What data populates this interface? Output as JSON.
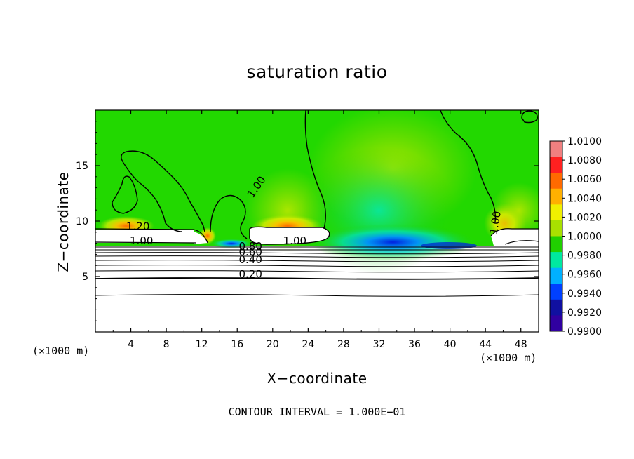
{
  "chart_data": {
    "type": "heatmap",
    "title": "saturation ratio",
    "xlabel": "X−coordinate",
    "ylabel": "Z−coordinate",
    "x_unit_label_left": "(×1000 m)",
    "x_unit_label_right": "(×1000 m)",
    "footer": "CONTOUR INTERVAL = 1.000E−01",
    "xlim": [
      0,
      50
    ],
    "ylim": [
      0,
      20
    ],
    "x_ticks": [
      "4",
      "8",
      "12",
      "16",
      "20",
      "24",
      "28",
      "32",
      "36",
      "40",
      "44",
      "48"
    ],
    "y_ticks": [
      "5",
      "10",
      "15"
    ],
    "colorbar": {
      "range": [
        0.99,
        1.01
      ],
      "labels": [
        "1.0100",
        "1.0080",
        "1.0060",
        "1.0040",
        "1.0020",
        "1.0000",
        "0.9980",
        "0.9960",
        "0.9940",
        "0.9920",
        "0.9900"
      ],
      "colors": [
        "#f08080",
        "#ff2020",
        "#ff6a00",
        "#ffb000",
        "#f0f000",
        "#a8e000",
        "#20d000",
        "#00e8a0",
        "#00b0ff",
        "#0040ff",
        "#1010a0",
        "#3000a0"
      ]
    },
    "contour_labels": [
      "1.00",
      "1.20",
      "1.00",
      "1.00",
      "0.80",
      "0.60",
      "0.40",
      "0.20",
      "1.00"
    ],
    "contour_interval": 0.1,
    "colors": {
      "background_field": "#22d800",
      "moist_band": "#ffb000",
      "dry_band": "#0020e0",
      "contour": "#000000"
    }
  }
}
